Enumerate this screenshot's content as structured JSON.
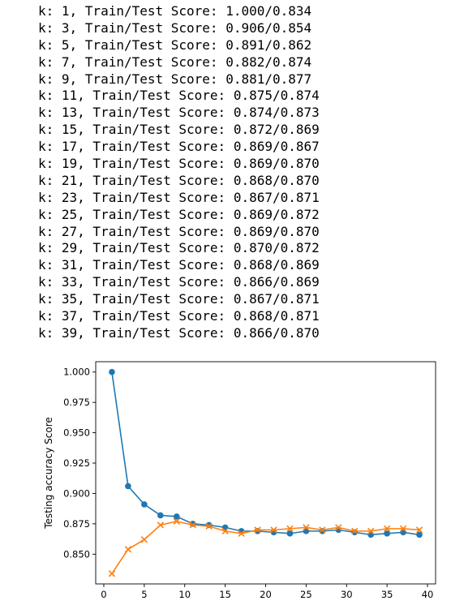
{
  "output_lines": [
    "k: 1, Train/Test Score: 1.000/0.834",
    "k: 3, Train/Test Score: 0.906/0.854",
    "k: 5, Train/Test Score: 0.891/0.862",
    "k: 7, Train/Test Score: 0.882/0.874",
    "k: 9, Train/Test Score: 0.881/0.877",
    "k: 11, Train/Test Score: 0.875/0.874",
    "k: 13, Train/Test Score: 0.874/0.873",
    "k: 15, Train/Test Score: 0.872/0.869",
    "k: 17, Train/Test Score: 0.869/0.867",
    "k: 19, Train/Test Score: 0.869/0.870",
    "k: 21, Train/Test Score: 0.868/0.870",
    "k: 23, Train/Test Score: 0.867/0.871",
    "k: 25, Train/Test Score: 0.869/0.872",
    "k: 27, Train/Test Score: 0.869/0.870",
    "k: 29, Train/Test Score: 0.870/0.872",
    "k: 31, Train/Test Score: 0.868/0.869",
    "k: 33, Train/Test Score: 0.866/0.869",
    "k: 35, Train/Test Score: 0.867/0.871",
    "k: 37, Train/Test Score: 0.868/0.871",
    "k: 39, Train/Test Score: 0.866/0.870"
  ],
  "chart_data": {
    "type": "line",
    "title": "",
    "xlabel": "",
    "ylabel": "Testing accuracy Score",
    "x": [
      1,
      3,
      5,
      7,
      9,
      11,
      13,
      15,
      17,
      19,
      21,
      23,
      25,
      27,
      29,
      31,
      33,
      35,
      37,
      39
    ],
    "xlim": [
      -1,
      41
    ],
    "ylim": [
      0.8255,
      1.0085
    ],
    "xticks": [
      "0",
      "5",
      "10",
      "15",
      "20",
      "25",
      "30",
      "35",
      "40"
    ],
    "yticks": [
      "0.850",
      "0.875",
      "0.900",
      "0.925",
      "0.950",
      "0.975",
      "1.000"
    ],
    "grid": false,
    "series": [
      {
        "values": [
          1.0,
          0.906,
          0.891,
          0.882,
          0.881,
          0.875,
          0.874,
          0.872,
          0.869,
          0.869,
          0.868,
          0.867,
          0.869,
          0.869,
          0.87,
          0.868,
          0.866,
          0.867,
          0.868,
          0.866
        ],
        "color": "#1f77b4",
        "marker": "circle"
      },
      {
        "values": [
          0.834,
          0.854,
          0.862,
          0.874,
          0.877,
          0.874,
          0.873,
          0.869,
          0.867,
          0.87,
          0.87,
          0.871,
          0.872,
          0.87,
          0.872,
          0.869,
          0.869,
          0.871,
          0.871,
          0.87
        ],
        "color": "#ff7f0e",
        "marker": "x"
      }
    ]
  }
}
